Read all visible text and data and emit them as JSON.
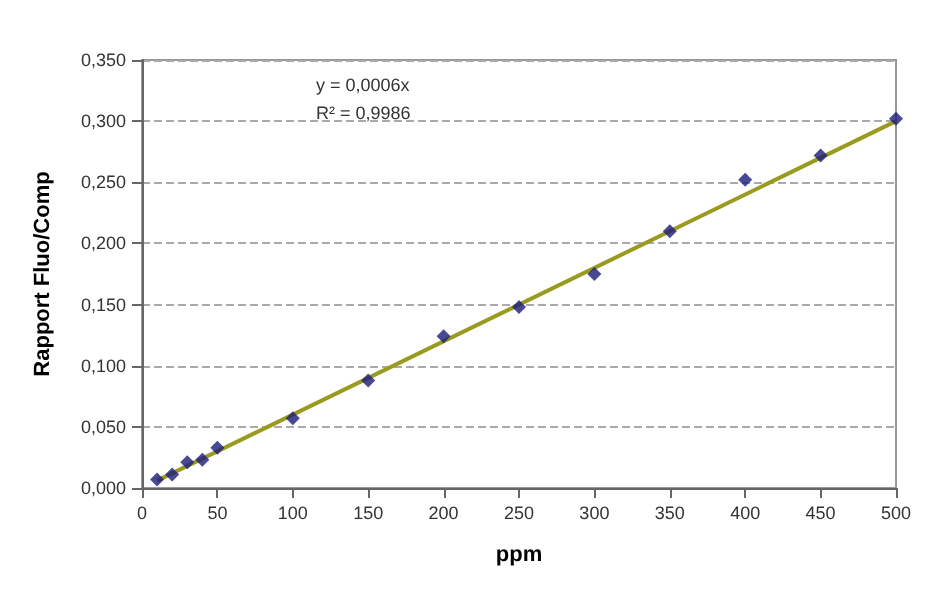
{
  "chart_data": {
    "type": "scatter",
    "xlabel": "ppm",
    "ylabel": "Rapport Fluo/Comp",
    "annotations": [
      "y = 0,0006x",
      "R² = 0,9986"
    ],
    "series": [
      {
        "color": "#1a1a7a",
        "marker": "diamond",
        "x": [
          10,
          20,
          30,
          40,
          50,
          100,
          150,
          200,
          250,
          300,
          350,
          400,
          450,
          500
        ],
        "values": [
          0.007,
          0.011,
          0.021,
          0.023,
          0.033,
          0.057,
          0.088,
          0.124,
          0.148,
          0.175,
          0.21,
          0.252,
          0.272,
          0.302
        ]
      },
      {
        "type": "line",
        "color": "#9a9a1e",
        "marker": "none",
        "x": [
          10,
          500
        ],
        "values": [
          0.006,
          0.3
        ]
      }
    ],
    "xlim": [
      0,
      500
    ],
    "xticks": [
      0,
      50,
      100,
      150,
      200,
      250,
      300,
      350,
      400,
      450,
      500
    ],
    "ylim": [
      0,
      0.35
    ],
    "yticks": [
      {
        "value": 0,
        "label": "0,000"
      },
      {
        "value": 0.05,
        "label": "0,050"
      },
      {
        "value": 0.1,
        "label": "0,100"
      },
      {
        "value": 0.15,
        "label": "0,150"
      },
      {
        "value": 0.2,
        "label": "0,200"
      },
      {
        "value": 0.25,
        "label": "0,250"
      },
      {
        "value": 0.3,
        "label": "0,300"
      },
      {
        "value": 0.35,
        "label": "0,350"
      }
    ],
    "grid": "y"
  }
}
